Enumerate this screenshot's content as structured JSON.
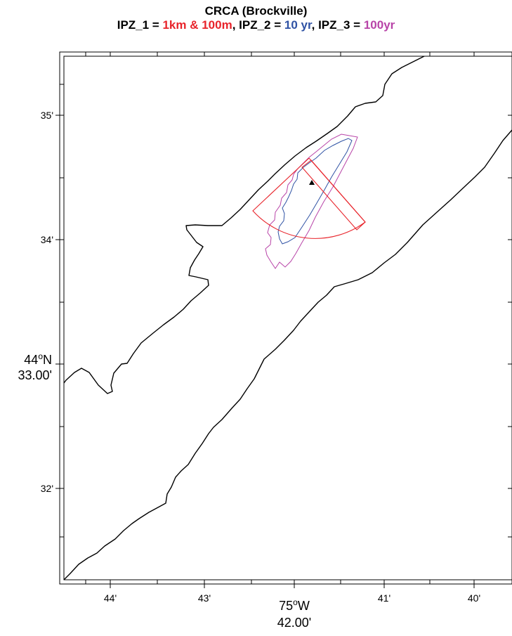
{
  "title": {
    "line1": "CRCA (Brockville)",
    "line2_parts": [
      {
        "text": "IPZ_1 = ",
        "color": "black"
      },
      {
        "text": "1km & 100m",
        "color": "red"
      },
      {
        "text": ", IPZ_2 = ",
        "color": "black"
      },
      {
        "text": "10 yr",
        "color": "blue"
      },
      {
        "text": ", IPZ_3 = ",
        "color": "black"
      },
      {
        "text": "100yr",
        "color": "magenta"
      }
    ]
  },
  "colors": {
    "ipz1": "#e8242b",
    "ipz2": "#2f52a4",
    "ipz3": "#b844a8",
    "shoreline": "#000000"
  },
  "axes": {
    "x_ticks": [
      "44'",
      "43'",
      "41'",
      "40'"
    ],
    "x_center": {
      "deg": "75",
      "hemi": "W",
      "min": "42.00'"
    },
    "y_ticks": [
      "35'",
      "34'",
      "32'"
    ],
    "y_center": {
      "deg": "44",
      "hemi": "N",
      "min": "33.00'"
    }
  },
  "markers": [
    {
      "name": "intake-marker",
      "symbol": "triangle"
    }
  ]
}
